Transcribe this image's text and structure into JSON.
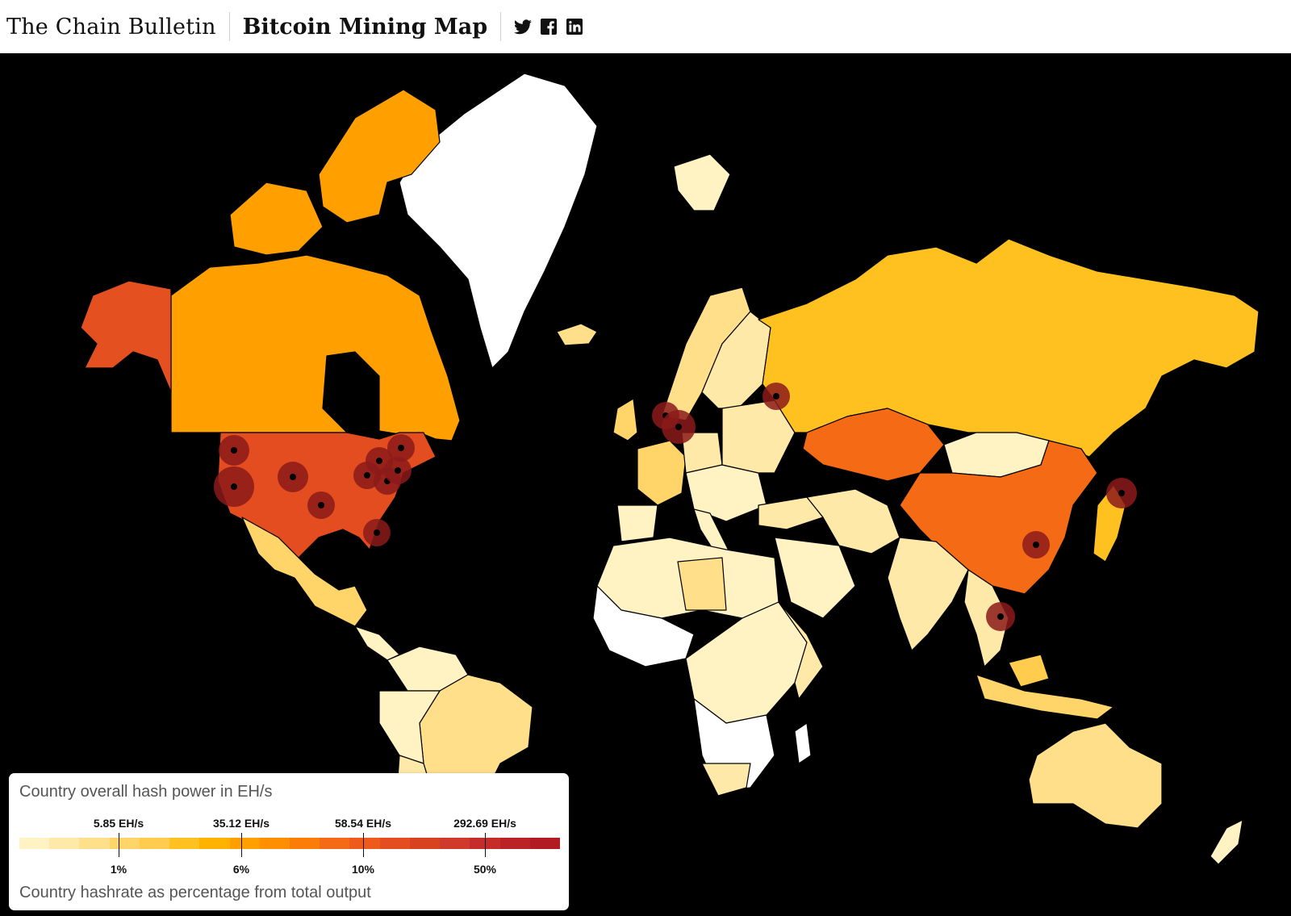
{
  "header": {
    "brand": "The Chain Bulletin",
    "title": "Bitcoin Mining Map",
    "social": [
      {
        "name": "twitter-icon"
      },
      {
        "name": "facebook-icon"
      },
      {
        "name": "linkedin-icon"
      }
    ]
  },
  "colors": {
    "background": "#000000",
    "no_data": "#ffffff",
    "scale": [
      "#fff3c4",
      "#ffe9a8",
      "#ffdf8a",
      "#ffd56a",
      "#ffcc4d",
      "#ffc11f",
      "#ffb300",
      "#ffa000",
      "#ff8f00",
      "#fb7d08",
      "#f56a14",
      "#ee5a1c",
      "#e44d1f",
      "#d8421f",
      "#cf3a2a",
      "#c52d2a",
      "#bb2226",
      "#b31b22"
    ],
    "hotspot": "#8b1a1a"
  },
  "legend": {
    "title": "Country overall hash power in EH/s",
    "subtitle": "Country hashrate as percentage from total output",
    "ticks": [
      {
        "eh": "5.85 EH/s",
        "pct": "1%"
      },
      {
        "eh": "35.12 EH/s",
        "pct": "6%"
      },
      {
        "eh": "58.54 EH/s",
        "pct": "10%"
      },
      {
        "eh": "292.69 EH/s",
        "pct": "50%"
      }
    ]
  }
}
